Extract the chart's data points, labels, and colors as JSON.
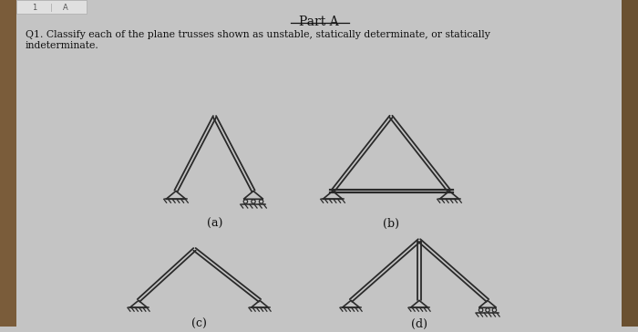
{
  "bg_color": "#c4c4c4",
  "title": "Part A",
  "question": "Q1. Classify each of the plane trusses shown as unstable, statically determinate, or statically\nindeterminate.",
  "text_color": "#111111",
  "truss_color": "#2a2a2a",
  "label_a": "(a)",
  "label_b": "(b)",
  "label_c": "(c)",
  "label_d": "(d)",
  "left_bar_color": "#7a5c3a",
  "right_bar_color": "#6a5030"
}
